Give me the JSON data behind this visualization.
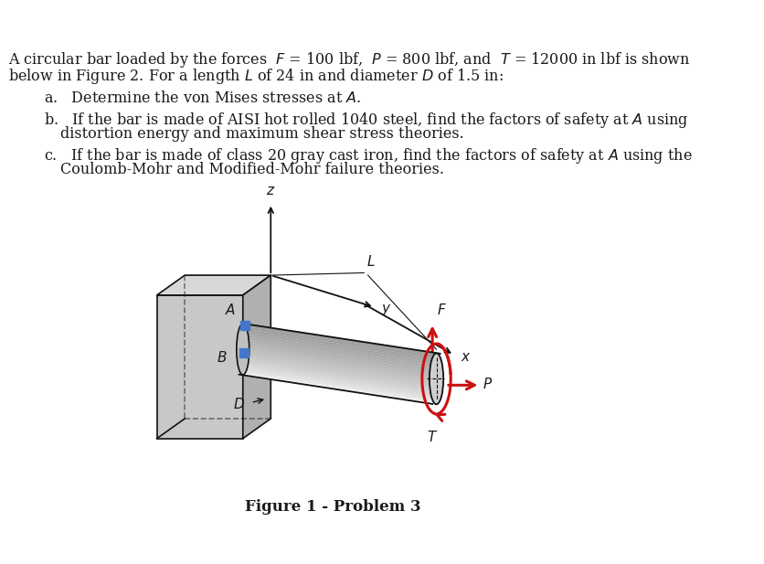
{
  "bg_color": "#ffffff",
  "text_color": "#1a1a1a",
  "wall_front_color": "#c8c8c8",
  "wall_side_color": "#b0b0b0",
  "wall_top_color": "#d8d8d8",
  "bar_body_color": "#e0e0e0",
  "bar_highlight": "#f5f5f5",
  "bar_shadow": "#a0a0a0",
  "bar_end_color": "#d0d0d0",
  "blue_color": "#4477cc",
  "red_color": "#cc1111",
  "axis_color": "#111111",
  "line_color": "#111111",
  "figure_caption": "Figure 1 - Problem 3"
}
